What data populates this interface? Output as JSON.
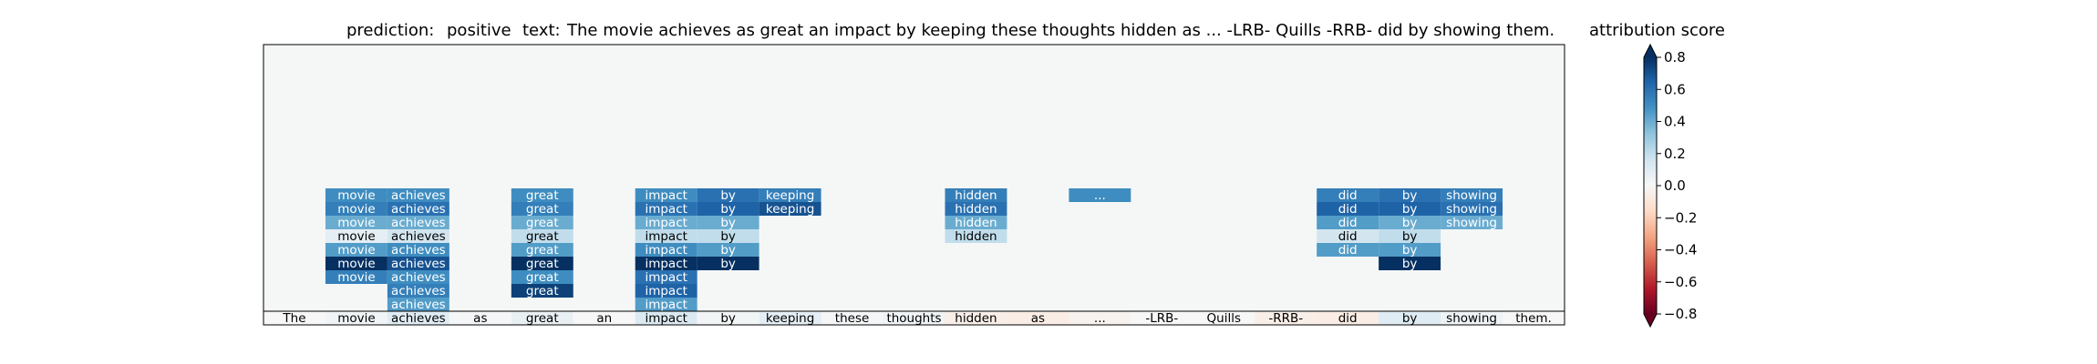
{
  "title": {
    "prediction_label": "prediction:",
    "prediction_value": "positive",
    "text_label": "text:",
    "text_value": "The movie achieves as great an impact by keeping these thoughts hidden as ... -LRB- Quills -RRB- did by showing them."
  },
  "colorbar": {
    "title": "attribution score",
    "ticks": [
      "0.8",
      "0.6",
      "0.4",
      "0.2",
      "0.0",
      "−0.2",
      "−0.4",
      "−0.6",
      "−0.8"
    ],
    "tick_values": [
      0.8,
      0.6,
      0.4,
      0.2,
      0.0,
      -0.2,
      -0.4,
      -0.6,
      -0.8
    ],
    "vmin": -0.8,
    "vmax": 0.8,
    "colormap": "RdBu",
    "extend": "both"
  },
  "chart_data": {
    "type": "heatmap",
    "tokens": [
      "The",
      "movie",
      "achieves",
      "as",
      "great",
      "an",
      "impact",
      "by",
      "keeping",
      "these",
      "thoughts",
      "hidden",
      "as",
      "...",
      "-LRB-",
      "Quills",
      "-RRB-",
      "did",
      "by",
      "showing",
      "them."
    ],
    "token_scores": [
      0.0,
      0.03,
      0.1,
      0.01,
      0.06,
      0.0,
      0.12,
      0.02,
      0.08,
      0.01,
      0.03,
      -0.05,
      -0.06,
      -0.03,
      0.0,
      0.0,
      -0.05,
      -0.06,
      0.1,
      0.04,
      0.0
    ],
    "rows": [
      {
        "movie": 0.5,
        "achieves": 0.5,
        "great": 0.5,
        "impact": 0.5,
        "keeping": 0.55,
        "hidden": 0.55,
        "...": 0.5,
        "did": 0.55,
        "by": 0.6,
        "showing": 0.55
      },
      {
        "movie": 0.55,
        "achieves": 0.6,
        "great": 0.55,
        "impact": 0.6,
        "keeping": 0.7,
        "hidden": 0.6,
        "did": 0.65,
        "by": 0.65,
        "showing": 0.6
      },
      {
        "movie": 0.4,
        "achieves": 0.4,
        "great": 0.4,
        "impact": 0.4,
        "hidden": 0.4,
        "did": 0.45,
        "by": 0.4,
        "showing": 0.4
      },
      {
        "movie": 0.08,
        "achieves": 0.15,
        "great": 0.2,
        "impact": 0.2,
        "hidden": 0.2,
        "did": 0.15,
        "by": 0.2
      },
      {
        "movie": 0.45,
        "achieves": 0.5,
        "great": 0.45,
        "impact": 0.5,
        "did": 0.45,
        "by": 0.45
      },
      {
        "movie": 0.85,
        "achieves": 0.7,
        "great": 0.85,
        "impact": 0.85,
        "by": 0.9
      },
      {
        "movie": 0.55,
        "achieves": 0.5,
        "great": 0.5,
        "impact": 0.6
      },
      {
        "achieves": 0.55,
        "great": 0.75,
        "impact": 0.65
      },
      {
        "achieves": 0.45,
        "impact": 0.45
      }
    ]
  }
}
